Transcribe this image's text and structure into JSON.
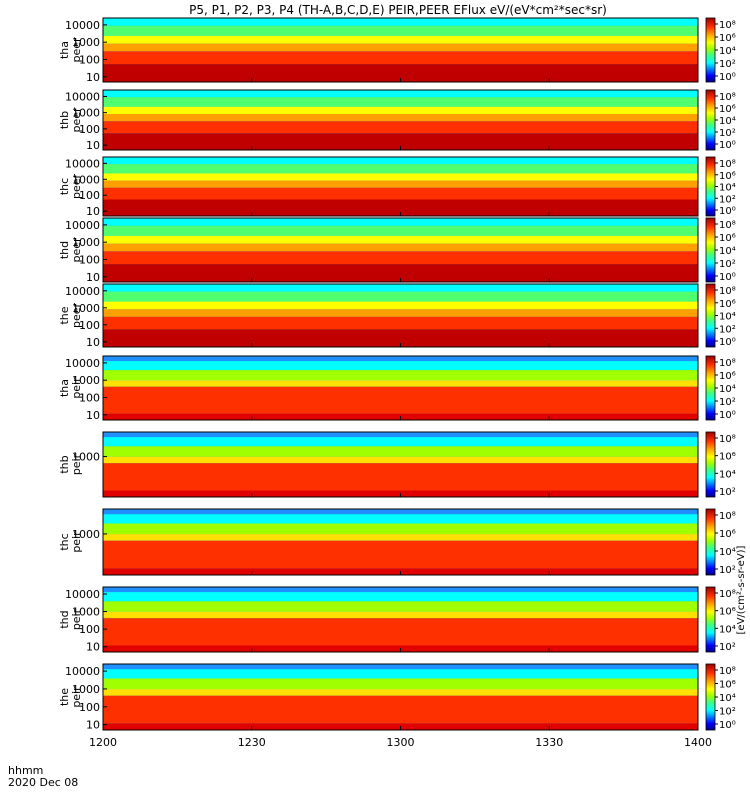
{
  "title": "P5, P1, P2, P3, P4 (TH-A,B,C,D,E) PEIR,PEER EFlux eV/(eV*cm²*sec*sr)",
  "x_axis": {
    "label_line1": "hhmm",
    "label_line2": "2020 Dec 08",
    "ticks": [
      "1200",
      "1230",
      "1300",
      "1330",
      "1400"
    ]
  },
  "colorbar_label": "[eV/(cm²-s-sr-eV)]",
  "colors": {
    "scale": [
      "#00008b",
      "#0000ff",
      "#0080ff",
      "#00ffff",
      "#40ff80",
      "#a0ff00",
      "#ffff00",
      "#ffa000",
      "#ff3000",
      "#d00000",
      "#a00000"
    ]
  },
  "chart_data": [
    {
      "type": "heatmap",
      "probe": "tha",
      "species": "peer",
      "ylabel": [
        "tha",
        "peer"
      ],
      "y_scale": "log",
      "y_ticks": [
        "10000",
        "1000",
        "100",
        "10"
      ],
      "ylim": [
        5,
        25000
      ],
      "cbar_ticks": [
        "10⁸",
        "10⁶",
        "10⁴",
        "10²",
        "10⁰"
      ]
    },
    {
      "type": "heatmap",
      "probe": "thb",
      "species": "peer",
      "ylabel": [
        "thb",
        "peer"
      ],
      "y_scale": "log",
      "y_ticks": [
        "10000",
        "1000",
        "100",
        "10"
      ],
      "ylim": [
        5,
        25000
      ],
      "cbar_ticks": [
        "10⁸",
        "10⁶",
        "10⁴",
        "10²",
        "10⁰"
      ]
    },
    {
      "type": "heatmap",
      "probe": "thc",
      "species": "peer",
      "ylabel": [
        "thc",
        "peer"
      ],
      "y_scale": "log",
      "y_ticks": [
        "10000",
        "1000",
        "100",
        "10"
      ],
      "ylim": [
        5,
        25000
      ],
      "cbar_ticks": [
        "10⁸",
        "10⁶",
        "10⁴",
        "10²",
        "10⁰"
      ]
    },
    {
      "type": "heatmap",
      "probe": "thd",
      "species": "peer",
      "ylabel": [
        "thd",
        "peer"
      ],
      "y_scale": "log",
      "y_ticks": [
        "10000",
        "1000",
        "100",
        "10"
      ],
      "ylim": [
        5,
        25000
      ],
      "cbar_ticks": [
        "10⁸",
        "10⁶",
        "10⁴",
        "10²",
        "10⁰"
      ]
    },
    {
      "type": "heatmap",
      "probe": "the",
      "species": "peer",
      "ylabel": [
        "the",
        "peer"
      ],
      "y_scale": "log",
      "y_ticks": [
        "10000",
        "1000",
        "100",
        "10"
      ],
      "ylim": [
        5,
        25000
      ],
      "cbar_ticks": [
        "10⁸",
        "10⁶",
        "10⁴",
        "10²",
        "10⁰"
      ]
    },
    {
      "type": "heatmap",
      "probe": "tha",
      "species": "peir",
      "ylabel": [
        "tha",
        "peir"
      ],
      "y_scale": "log",
      "y_ticks": [
        "10000",
        "1000",
        "100",
        "10"
      ],
      "ylim": [
        5,
        25000
      ],
      "cbar_ticks": [
        "10⁸",
        "10⁶",
        "10⁴",
        "10²",
        "10⁰"
      ]
    },
    {
      "type": "heatmap",
      "probe": "thb",
      "species": "peir",
      "ylabel": [
        "thb",
        "peir"
      ],
      "y_scale": "log",
      "y_ticks": [
        "1000"
      ],
      "ylim": [
        5,
        25000
      ],
      "cbar_ticks": [
        "10⁸",
        "10⁶",
        "10⁴",
        "10²"
      ]
    },
    {
      "type": "heatmap",
      "probe": "thc",
      "species": "peir",
      "ylabel": [
        "thc",
        "peir"
      ],
      "y_scale": "log",
      "y_ticks": [
        "1000"
      ],
      "ylim": [
        5,
        25000
      ],
      "cbar_ticks": [
        "10⁸",
        "10⁶",
        "10⁴",
        "10²"
      ]
    },
    {
      "type": "heatmap",
      "probe": "thd",
      "species": "peir",
      "ylabel": [
        "thd",
        "peir"
      ],
      "y_scale": "log",
      "y_ticks": [
        "10000",
        "1000",
        "100",
        "10"
      ],
      "ylim": [
        5,
        25000
      ],
      "cbar_ticks": [
        "10⁸",
        "10⁶",
        "10⁴",
        "10²"
      ]
    },
    {
      "type": "heatmap",
      "probe": "the",
      "species": "peir",
      "ylabel": [
        "the",
        "peir"
      ],
      "y_scale": "log",
      "y_ticks": [
        "10000",
        "1000",
        "100",
        "10"
      ],
      "ylim": [
        5,
        25000
      ],
      "cbar_ticks": [
        "10⁸",
        "10⁶",
        "10⁴",
        "10²",
        "10⁰"
      ]
    }
  ]
}
